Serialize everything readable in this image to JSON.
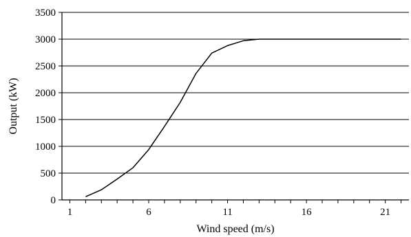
{
  "chart_data": {
    "type": "line",
    "xlabel": "Wind speed (m/s)",
    "ylabel": "Output (kW)",
    "xlim": [
      0.5,
      22.5
    ],
    "ylim": [
      0,
      3500
    ],
    "x_ticks": [
      1,
      6,
      11,
      16,
      21
    ],
    "y_ticks": [
      0,
      500,
      1000,
      1500,
      2000,
      2500,
      3000,
      3500
    ],
    "grid": "horizontal",
    "legend": "none",
    "series": [
      {
        "color": "#000000",
        "x": [
          2,
          3,
          4,
          5,
          6,
          7,
          8,
          9,
          10,
          11,
          12,
          13,
          14,
          15,
          16,
          17,
          18,
          19,
          20,
          21,
          22
        ],
        "y": [
          60,
          190,
          390,
          600,
          940,
          1370,
          1820,
          2360,
          2740,
          2880,
          2970,
          3000,
          3000,
          3000,
          3000,
          3000,
          3000,
          3000,
          3000,
          3000,
          3000
        ]
      }
    ]
  }
}
